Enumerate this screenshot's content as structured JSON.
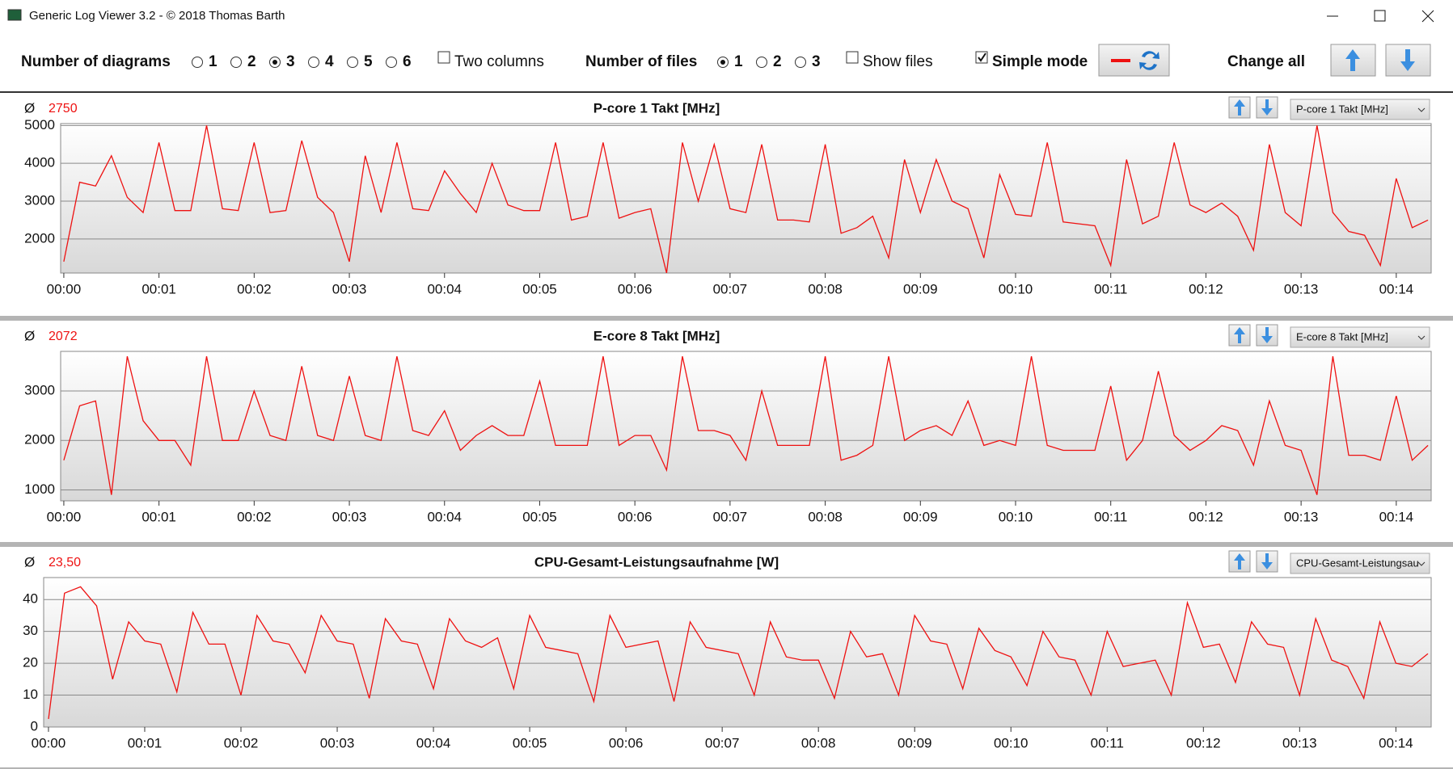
{
  "window": {
    "title": "Generic Log Viewer 3.2 - © 2018 Thomas Barth"
  },
  "toolbar": {
    "diagrams_label": "Number of diagrams",
    "diagram_options": [
      1,
      2,
      3,
      4,
      5,
      6
    ],
    "selected_diagrams": 3,
    "two_columns": {
      "label": "Two columns",
      "checked": false
    },
    "files_label": "Number of files",
    "file_options": [
      1,
      2,
      3
    ],
    "selected_files": 1,
    "show_files": {
      "label": "Show files",
      "checked": false
    },
    "simple_mode": {
      "label": "Simple mode",
      "checked": true
    },
    "change_all": "Change all"
  },
  "chart_data": [
    {
      "type": "line",
      "title": "P-core 1 Takt [MHz]",
      "average_symbol": "Ø",
      "average": 2750,
      "dropdown": "P-core 1 Takt [MHz]",
      "color": "#ee1111",
      "x": [
        0,
        10,
        20,
        30,
        40,
        50,
        60,
        70,
        80,
        90,
        100,
        110,
        120,
        130,
        140,
        150,
        160,
        170,
        180,
        190,
        200,
        210,
        220,
        230,
        240,
        250,
        260,
        270,
        280,
        290,
        300,
        310,
        320,
        330,
        340,
        350,
        360,
        370,
        380,
        390,
        400,
        410,
        420,
        430,
        440,
        450,
        460,
        470,
        480,
        490,
        500,
        510,
        520,
        530,
        540,
        550,
        560,
        570,
        580,
        590,
        600,
        610,
        620,
        630,
        640,
        650,
        660,
        670,
        680,
        690,
        700,
        710,
        720,
        730,
        740,
        750,
        760,
        770,
        780,
        790,
        800,
        810,
        820,
        830,
        840,
        850,
        860
      ],
      "values": [
        1400,
        3500,
        3400,
        4200,
        3100,
        2700,
        4550,
        2750,
        2750,
        5000,
        2800,
        2750,
        4550,
        2700,
        2750,
        4600,
        3100,
        2700,
        1400,
        4200,
        2700,
        4550,
        2800,
        2750,
        3800,
        3200,
        2700,
        4000,
        2900,
        2750,
        2750,
        4550,
        2500,
        2600,
        4550,
        2550,
        2700,
        2800,
        1100,
        4550,
        3000,
        4500,
        2800,
        2700,
        4500,
        2500,
        2500,
        2450,
        4500,
        2150,
        2300,
        2600,
        1500,
        4100,
        2700,
        4100,
        3000,
        2800,
        1500,
        3700,
        2650,
        2600,
        4550,
        2450,
        2400,
        2350,
        1300,
        4100,
        2400,
        2600,
        4550,
        2900,
        2700,
        2950,
        2600,
        1700,
        4500,
        2700,
        2350,
        5000,
        2700,
        2200,
        2100,
        1300,
        3600,
        2300,
        2500
      ],
      "xlim": [
        -2,
        862
      ],
      "ylim": [
        1100,
        5050
      ],
      "yticks": [
        2000,
        3000,
        4000,
        5000
      ],
      "xticks": [
        {
          "value": 0,
          "label": "00:00"
        },
        {
          "value": 60,
          "label": "00:01"
        },
        {
          "value": 120,
          "label": "00:02"
        },
        {
          "value": 180,
          "label": "00:03"
        },
        {
          "value": 240,
          "label": "00:04"
        },
        {
          "value": 300,
          "label": "00:05"
        },
        {
          "value": 360,
          "label": "00:06"
        },
        {
          "value": 420,
          "label": "00:07"
        },
        {
          "value": 480,
          "label": "00:08"
        },
        {
          "value": 540,
          "label": "00:09"
        },
        {
          "value": 600,
          "label": "00:10"
        },
        {
          "value": 660,
          "label": "00:11"
        },
        {
          "value": 720,
          "label": "00:12"
        },
        {
          "value": 780,
          "label": "00:13"
        },
        {
          "value": 840,
          "label": "00:14"
        }
      ],
      "grid": true
    },
    {
      "type": "line",
      "title": "E-core 8 Takt [MHz]",
      "average_symbol": "Ø",
      "average": 2072,
      "dropdown": "E-core 8 Takt [MHz]",
      "color": "#ee1111",
      "x": [
        0,
        10,
        20,
        30,
        40,
        50,
        60,
        70,
        80,
        90,
        100,
        110,
        120,
        130,
        140,
        150,
        160,
        170,
        180,
        190,
        200,
        210,
        220,
        230,
        240,
        250,
        260,
        270,
        280,
        290,
        300,
        310,
        320,
        330,
        340,
        350,
        360,
        370,
        380,
        390,
        400,
        410,
        420,
        430,
        440,
        450,
        460,
        470,
        480,
        490,
        500,
        510,
        520,
        530,
        540,
        550,
        560,
        570,
        580,
        590,
        600,
        610,
        620,
        630,
        640,
        650,
        660,
        670,
        680,
        690,
        700,
        710,
        720,
        730,
        740,
        750,
        760,
        770,
        780,
        790,
        800,
        810,
        820,
        830,
        840,
        850,
        860
      ],
      "values": [
        1600,
        2700,
        2800,
        900,
        3700,
        2400,
        2000,
        2000,
        1500,
        3700,
        2000,
        2000,
        3000,
        2100,
        2000,
        3500,
        2100,
        2000,
        3300,
        2100,
        2000,
        3700,
        2200,
        2100,
        2600,
        1800,
        2100,
        2300,
        2100,
        2100,
        3200,
        1900,
        1900,
        1900,
        3700,
        1900,
        2100,
        2100,
        1400,
        3700,
        2200,
        2200,
        2100,
        1600,
        3000,
        1900,
        1900,
        1900,
        3700,
        1600,
        1700,
        1900,
        3700,
        2000,
        2200,
        2300,
        2100,
        2800,
        1900,
        2000,
        1900,
        3700,
        1900,
        1800,
        1800,
        1800,
        3100,
        1600,
        2000,
        3400,
        2100,
        1800,
        2000,
        2300,
        2200,
        1500,
        2800,
        1900,
        1800,
        900,
        3700,
        1700,
        1700,
        1600,
        2900,
        1600,
        1900
      ],
      "xlim": [
        -2,
        862
      ],
      "ylim": [
        780,
        3800
      ],
      "yticks": [
        1000,
        2000,
        3000
      ],
      "xticks": [
        {
          "value": 0,
          "label": "00:00"
        },
        {
          "value": 60,
          "label": "00:01"
        },
        {
          "value": 120,
          "label": "00:02"
        },
        {
          "value": 180,
          "label": "00:03"
        },
        {
          "value": 240,
          "label": "00:04"
        },
        {
          "value": 300,
          "label": "00:05"
        },
        {
          "value": 360,
          "label": "00:06"
        },
        {
          "value": 420,
          "label": "00:07"
        },
        {
          "value": 480,
          "label": "00:08"
        },
        {
          "value": 540,
          "label": "00:09"
        },
        {
          "value": 600,
          "label": "00:10"
        },
        {
          "value": 660,
          "label": "00:11"
        },
        {
          "value": 720,
          "label": "00:12"
        },
        {
          "value": 780,
          "label": "00:13"
        },
        {
          "value": 840,
          "label": "00:14"
        }
      ],
      "grid": true
    },
    {
      "type": "line",
      "title": "CPU-Gesamt-Leistungsaufnahme [W]",
      "average_symbol": "Ø",
      "average": {
        "value": 23.5,
        "label": "23,50"
      },
      "dropdown": "CPU-Gesamt-Leistungsau",
      "color": "#ee1111",
      "x": [
        0,
        10,
        20,
        30,
        40,
        50,
        60,
        70,
        80,
        90,
        100,
        110,
        120,
        130,
        140,
        150,
        160,
        170,
        180,
        190,
        200,
        210,
        220,
        230,
        240,
        250,
        260,
        270,
        280,
        290,
        300,
        310,
        320,
        330,
        340,
        350,
        360,
        370,
        380,
        390,
        400,
        410,
        420,
        430,
        440,
        450,
        460,
        470,
        480,
        490,
        500,
        510,
        520,
        530,
        540,
        550,
        560,
        570,
        580,
        590,
        600,
        610,
        620,
        630,
        640,
        650,
        660,
        670,
        680,
        690,
        700,
        710,
        720,
        730,
        740,
        750,
        760,
        770,
        780,
        790,
        800,
        810,
        820,
        830,
        840,
        850,
        860
      ],
      "values": [
        2.5,
        42,
        44,
        38,
        15,
        33,
        27,
        26,
        11,
        36,
        26,
        26,
        10,
        35,
        27,
        26,
        17,
        35,
        27,
        26,
        9,
        34,
        27,
        26,
        12,
        34,
        27,
        25,
        28,
        12,
        35,
        25,
        24,
        23,
        8,
        35,
        25,
        26,
        27,
        8,
        33,
        25,
        24,
        23,
        10,
        33,
        22,
        21,
        21,
        9,
        30,
        22,
        23,
        10,
        35,
        27,
        26,
        12,
        31,
        24,
        22,
        13,
        30,
        22,
        21,
        10,
        30,
        19,
        20,
        21,
        10,
        39,
        25,
        26,
        14,
        33,
        26,
        25,
        10,
        34,
        21,
        19,
        9,
        33,
        20,
        19,
        23
      ],
      "xlim": [
        -3,
        862
      ],
      "ylim": [
        0,
        46.9
      ],
      "yticks": [
        0,
        10,
        20,
        30,
        40
      ],
      "xticks": [
        {
          "value": 0,
          "label": "00:00"
        },
        {
          "value": 60,
          "label": "00:01"
        },
        {
          "value": 120,
          "label": "00:02"
        },
        {
          "value": 180,
          "label": "00:03"
        },
        {
          "value": 240,
          "label": "00:04"
        },
        {
          "value": 300,
          "label": "00:05"
        },
        {
          "value": 360,
          "label": "00:06"
        },
        {
          "value": 420,
          "label": "00:07"
        },
        {
          "value": 480,
          "label": "00:08"
        },
        {
          "value": 540,
          "label": "00:09"
        },
        {
          "value": 600,
          "label": "00:10"
        },
        {
          "value": 660,
          "label": "00:11"
        },
        {
          "value": 720,
          "label": "00:12"
        },
        {
          "value": 780,
          "label": "00:13"
        },
        {
          "value": 840,
          "label": "00:14"
        }
      ],
      "grid": true
    }
  ]
}
